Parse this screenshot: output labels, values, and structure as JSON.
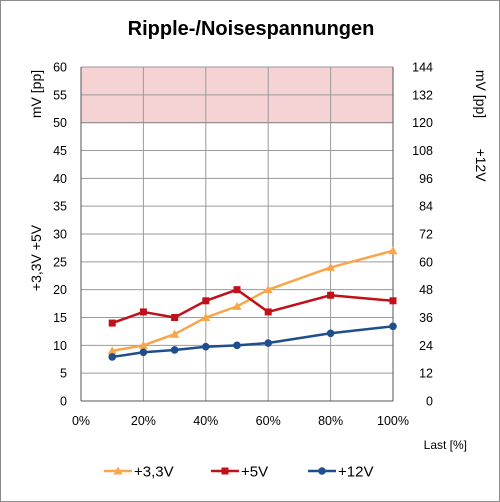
{
  "chart_data": {
    "type": "line",
    "title": "Ripple-/Noisespannungen",
    "xlabel": "Last [%]",
    "x_tick_labels": [
      "0%",
      "20%",
      "40%",
      "60%",
      "80%",
      "100%"
    ],
    "xlim": [
      0,
      100
    ],
    "ylabel_left": "+3,3V  +5V",
    "ylabel_left_unit": "mV [pp]",
    "ylim_left": [
      0,
      60
    ],
    "y_ticks_left": [
      "0",
      "5",
      "10",
      "15",
      "20",
      "25",
      "30",
      "35",
      "40",
      "45",
      "50",
      "55",
      "60"
    ],
    "ylabel_right": "+12V",
    "ylabel_right_unit": "mV [pp]",
    "ylim_right": [
      0,
      144
    ],
    "y_ticks_right": [
      "0",
      "12",
      "24",
      "36",
      "48",
      "60",
      "72",
      "84",
      "96",
      "108",
      "120",
      "132",
      "144"
    ],
    "limit_band_left": [
      50,
      60
    ],
    "grid": true,
    "legend_position": "bottom",
    "x": [
      10,
      20,
      30,
      40,
      50,
      60,
      80,
      100
    ],
    "series": [
      {
        "name": "+3,3V",
        "axis": "left",
        "marker": "triangle",
        "color": "#f7a64a",
        "values": [
          9,
          10,
          12,
          15,
          17,
          20,
          24,
          27
        ]
      },
      {
        "name": "+5V",
        "axis": "left",
        "marker": "square",
        "color": "#c0111a",
        "values": [
          14,
          16,
          15,
          18,
          20,
          16,
          19,
          18
        ]
      },
      {
        "name": "+12V",
        "axis": "right",
        "marker": "circle",
        "color": "#1f4e8c",
        "values": [
          19,
          21,
          22,
          23.4,
          24,
          25,
          29.2,
          32.2
        ]
      }
    ],
    "band_color": "#f5d3d4",
    "band_border_color": "#9a2b2f",
    "grid_color": "#9a9a9a"
  }
}
